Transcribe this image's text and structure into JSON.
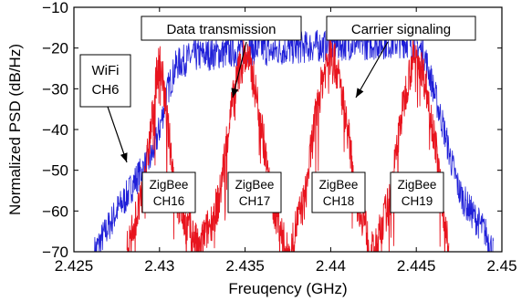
{
  "chart_data": {
    "type": "line",
    "xlabel": "Freuqency (GHz)",
    "ylabel": "Normalized PSD (dB/Hz)",
    "xlim": [
      2.425,
      2.45
    ],
    "ylim": [
      -70,
      -10
    ],
    "x_ticks": [
      2.425,
      2.43,
      2.435,
      2.44,
      2.445,
      2.45
    ],
    "x_tick_labels": [
      "2.425",
      "2.43",
      "2.435",
      "2.44",
      "2.445",
      "2.45"
    ],
    "y_ticks": [
      -70,
      -60,
      -50,
      -40,
      -30,
      -20,
      -10
    ],
    "y_tick_labels": [
      "−70",
      "−60",
      "−50",
      "−40",
      "−30",
      "−20",
      "−10"
    ],
    "grid": false,
    "series": [
      {
        "color": "#1f1fd8",
        "x": [
          2.4262,
          2.427,
          2.4275,
          2.428,
          2.4285,
          2.429,
          2.4295,
          2.43,
          2.4305,
          2.431,
          2.432,
          2.433,
          2.434,
          2.435,
          2.436,
          2.4365,
          2.437,
          2.438,
          2.439,
          2.44,
          2.441,
          2.442,
          2.443,
          2.444,
          2.4445,
          2.445,
          2.4455,
          2.446,
          2.4465,
          2.447,
          2.4475,
          2.448,
          2.4485,
          2.449,
          2.4495
        ],
        "y": [
          -70,
          -64,
          -60,
          -57,
          -53,
          -50,
          -47,
          -40,
          -30,
          -24,
          -22,
          -21.5,
          -21,
          -20.5,
          -20,
          -21,
          -20.5,
          -20,
          -19.5,
          -19.5,
          -19,
          -19,
          -18.8,
          -18.5,
          -18.5,
          -19,
          -22,
          -30,
          -38,
          -47,
          -55,
          -59,
          -62,
          -65,
          -70
        ]
      },
      {
        "color": "#e8141e",
        "x": [
          2.4281,
          2.4285,
          2.429,
          2.4295,
          2.4298,
          2.43,
          2.4302,
          2.4305,
          2.431,
          2.4315,
          2.432,
          2.4323,
          2.4326,
          2.433,
          2.4335,
          2.434,
          2.4345,
          2.4348,
          2.435,
          2.4352,
          2.4355,
          2.436,
          2.4365,
          2.437,
          2.4374,
          2.4377,
          2.438,
          2.4385,
          2.439,
          2.4395,
          2.4398,
          2.44,
          2.4402,
          2.4405,
          2.441,
          2.4415,
          2.442,
          2.4423,
          2.4426,
          2.443,
          2.4435,
          2.444,
          2.4445,
          2.4448,
          2.445,
          2.4452,
          2.4455,
          2.446,
          2.4465,
          2.4469
        ],
        "y": [
          -70,
          -63,
          -57,
          -40,
          -28,
          -23,
          -28,
          -40,
          -57,
          -63,
          -66,
          -70,
          -66,
          -63,
          -57,
          -40,
          -28,
          -23,
          -22,
          -23,
          -28,
          -40,
          -57,
          -63,
          -70,
          -70,
          -63,
          -57,
          -40,
          -28,
          -23,
          -22,
          -23,
          -28,
          -40,
          -57,
          -63,
          -70,
          -70,
          -63,
          -57,
          -40,
          -28,
          -23,
          -22,
          -23,
          -28,
          -40,
          -57,
          -70
        ]
      }
    ],
    "annotations": [
      {
        "text": "Data transmission"
      },
      {
        "text": "Carrier signaling"
      },
      {
        "lines": [
          "WiFi",
          "CH6"
        ]
      },
      {
        "lines": [
          "ZigBee",
          "CH16"
        ]
      },
      {
        "lines": [
          "ZigBee",
          "CH17"
        ]
      },
      {
        "lines": [
          "ZigBee",
          "CH18"
        ]
      },
      {
        "lines": [
          "ZigBee",
          "CH19"
        ]
      }
    ]
  }
}
